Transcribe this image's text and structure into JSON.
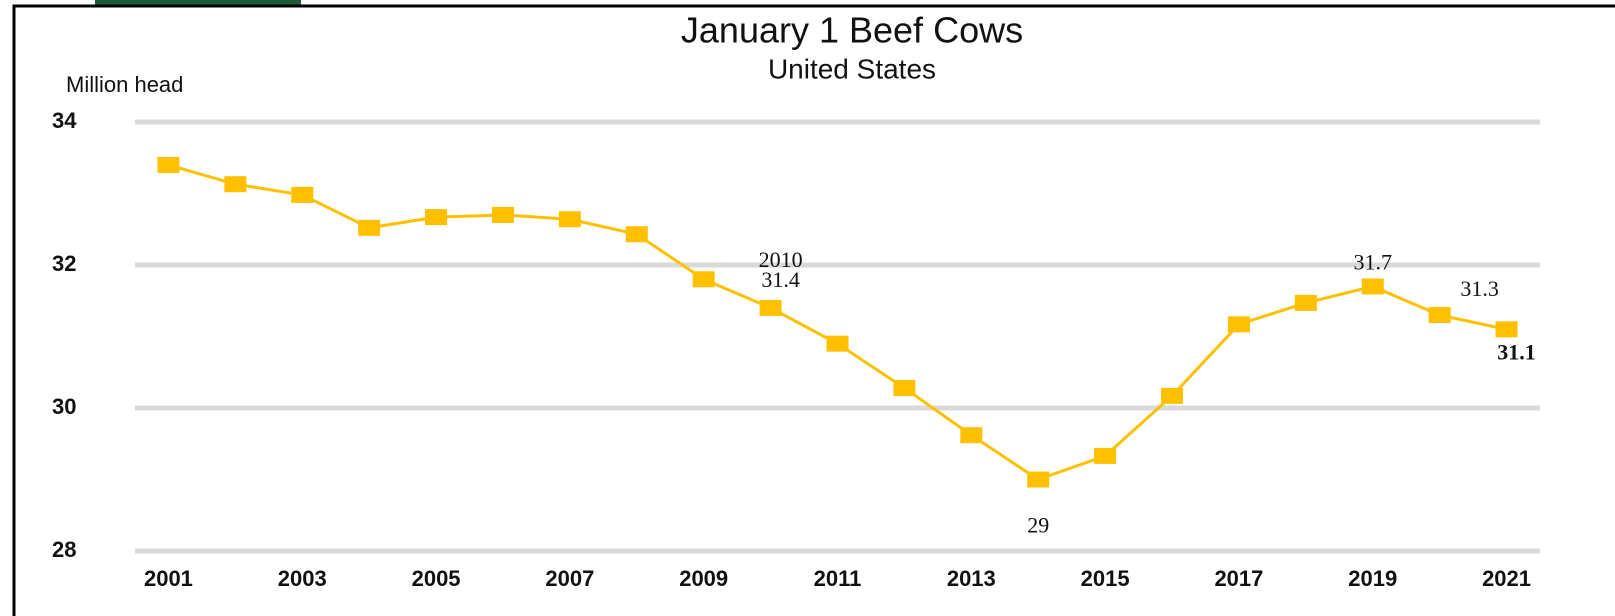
{
  "chart_data": {
    "type": "line",
    "title": "January 1 Beef Cows",
    "subtitle": "United States",
    "y_label": "Million head",
    "x": [
      2001,
      2002,
      2003,
      2004,
      2005,
      2006,
      2007,
      2008,
      2009,
      2010,
      2011,
      2012,
      2013,
      2014,
      2015,
      2016,
      2017,
      2018,
      2019,
      2020,
      2021
    ],
    "xlim": [
      2000.5,
      2021.5
    ],
    "xticks": [
      2001,
      2003,
      2005,
      2007,
      2009,
      2011,
      2013,
      2015,
      2017,
      2019,
      2021
    ],
    "ylim": [
      28,
      34
    ],
    "yticks": [
      28,
      30,
      32,
      34
    ],
    "grid": true,
    "series": [
      {
        "name": "Beef cows",
        "color": "#FFC000",
        "values": [
          33.4,
          33.13,
          32.98,
          32.52,
          32.67,
          32.7,
          32.64,
          32.43,
          31.8,
          31.4,
          30.9,
          30.28,
          29.62,
          29,
          29.33,
          30.17,
          31.17,
          31.47,
          31.7,
          31.3,
          31.1
        ],
        "value_labels": [
          null,
          null,
          null,
          null,
          null,
          null,
          null,
          null,
          null,
          "31.4",
          null,
          null,
          null,
          "29",
          null,
          null,
          null,
          null,
          "31.7",
          "31.3",
          "31.1"
        ]
      }
    ],
    "annotations": [
      {
        "text": "2010",
        "x": 2010
      }
    ]
  }
}
